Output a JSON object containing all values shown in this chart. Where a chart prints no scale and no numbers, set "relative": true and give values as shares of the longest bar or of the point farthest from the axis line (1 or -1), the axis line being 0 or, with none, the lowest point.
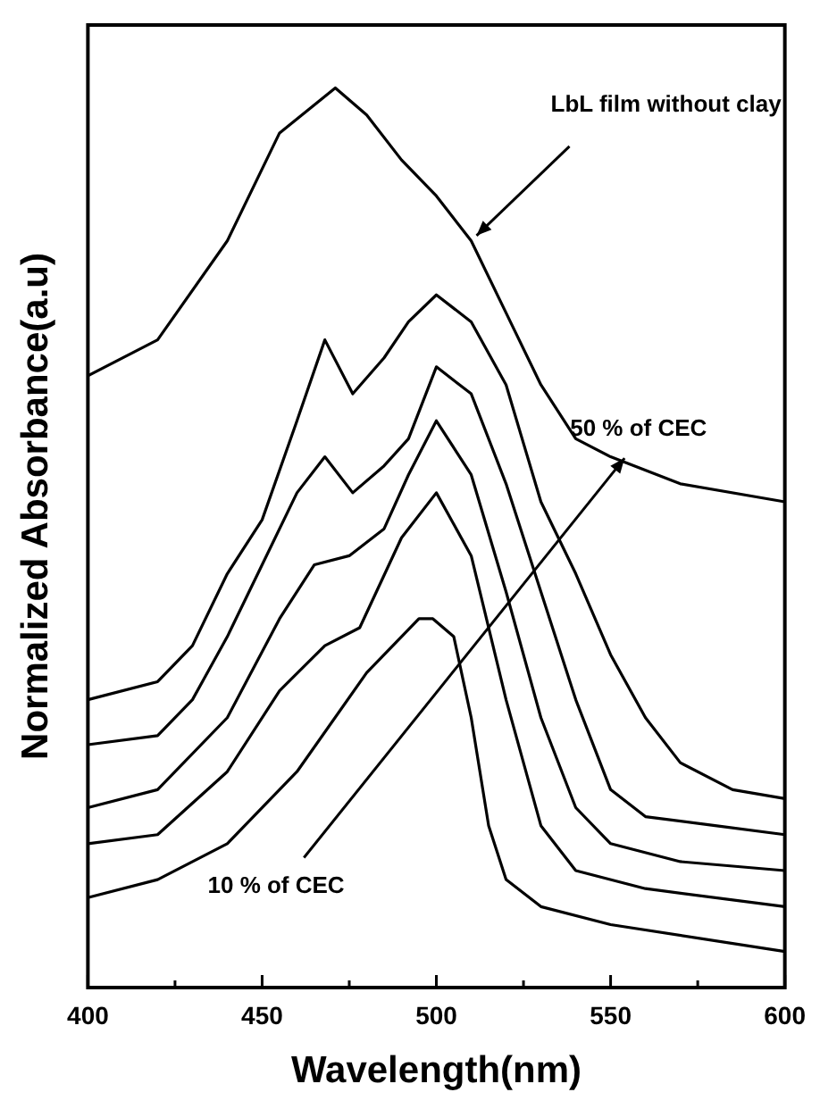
{
  "chart_data": {
    "type": "line",
    "xlabel": "Wavelength(nm)",
    "ylabel": "Normalized Absorbance(a.u)",
    "relative": true,
    "xlim": [
      400,
      600
    ],
    "xticks": [
      400,
      {
        "value": 425,
        "label": null
      },
      450,
      {
        "value": 475,
        "label": null
      },
      500,
      {
        "value": 525,
        "label": null
      },
      550,
      {
        "value": 575,
        "label": null
      },
      600
    ],
    "grid": false,
    "legend": false,
    "marker": "none",
    "line_style": "solid",
    "annotations": [
      {
        "text": "LbL film without clay",
        "x": 510,
        "y": 0.83
      },
      "50 % of CEC",
      "10 % of CEC"
    ],
    "series": [
      {
        "color": "#000000",
        "x": [
          400,
          420,
          440,
          455,
          471,
          480,
          490,
          500,
          510,
          520,
          530,
          540,
          550,
          570,
          600
        ],
        "values": [
          0.68,
          0.72,
          0.83,
          0.95,
          1.0,
          0.97,
          0.92,
          0.88,
          0.83,
          0.75,
          0.67,
          0.61,
          0.59,
          0.56,
          0.54
        ]
      },
      {
        "color": "#000000",
        "x": [
          400,
          420,
          430,
          440,
          450,
          460,
          468,
          476,
          485,
          492,
          500,
          510,
          520,
          530,
          540,
          550,
          560,
          570,
          585,
          600
        ],
        "values": [
          0.32,
          0.34,
          0.38,
          0.46,
          0.52,
          0.63,
          0.72,
          0.66,
          0.7,
          0.74,
          0.77,
          0.74,
          0.67,
          0.54,
          0.46,
          0.37,
          0.3,
          0.25,
          0.22,
          0.21
        ]
      },
      {
        "color": "#000000",
        "x": [
          400,
          420,
          430,
          440,
          450,
          460,
          468,
          476,
          485,
          492,
          500,
          510,
          520,
          530,
          540,
          550,
          560,
          580,
          600
        ],
        "values": [
          0.27,
          0.28,
          0.32,
          0.39,
          0.47,
          0.55,
          0.59,
          0.55,
          0.58,
          0.61,
          0.69,
          0.66,
          0.56,
          0.44,
          0.32,
          0.22,
          0.19,
          0.18,
          0.17
        ]
      },
      {
        "color": "#000000",
        "x": [
          400,
          420,
          440,
          455,
          465,
          475,
          485,
          492,
          500,
          510,
          520,
          530,
          540,
          550,
          570,
          600
        ],
        "values": [
          0.2,
          0.22,
          0.3,
          0.41,
          0.47,
          0.48,
          0.51,
          0.57,
          0.63,
          0.57,
          0.44,
          0.3,
          0.2,
          0.16,
          0.14,
          0.13
        ]
      },
      {
        "color": "#000000",
        "x": [
          400,
          420,
          440,
          455,
          468,
          478,
          490,
          500,
          510,
          520,
          530,
          540,
          560,
          600
        ],
        "values": [
          0.16,
          0.17,
          0.24,
          0.33,
          0.38,
          0.4,
          0.5,
          0.55,
          0.48,
          0.32,
          0.18,
          0.13,
          0.11,
          0.09
        ]
      },
      {
        "color": "#000000",
        "x": [
          400,
          420,
          440,
          460,
          480,
          495,
          499,
          505,
          510,
          515,
          520,
          530,
          550,
          600
        ],
        "values": [
          0.1,
          0.12,
          0.16,
          0.24,
          0.35,
          0.41,
          0.41,
          0.39,
          0.3,
          0.18,
          0.12,
          0.09,
          0.07,
          0.04
        ]
      }
    ]
  }
}
